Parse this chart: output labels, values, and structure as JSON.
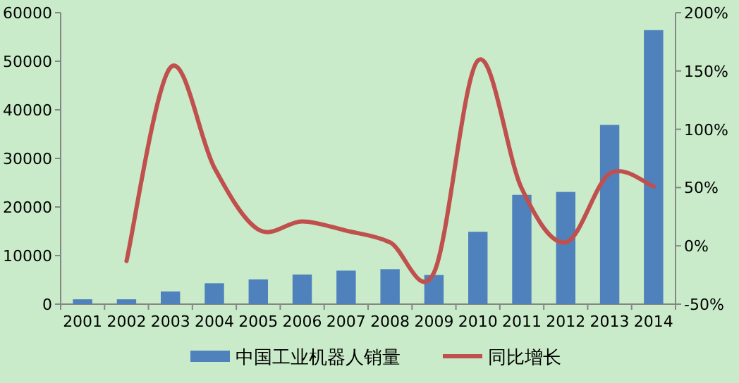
{
  "chart_data": {
    "type": "bar",
    "categories": [
      "2001",
      "2002",
      "2003",
      "2004",
      "2005",
      "2006",
      "2007",
      "2008",
      "2009",
      "2010",
      "2011",
      "2012",
      "2013",
      "2014"
    ],
    "series": [
      {
        "name": "中国工业机器人销量",
        "color": "#4f81bd",
        "values": [
          1000,
          1000,
          2600,
          4300,
          5100,
          6100,
          6900,
          7200,
          6000,
          14900,
          22500,
          23100,
          36900,
          56400
        ]
      },
      {
        "name": "同比增长",
        "type": "line",
        "axis": "y2",
        "color": "#c0504d",
        "values": [
          null,
          -13,
          153,
          67,
          14,
          21,
          13,
          3,
          -23,
          159,
          49,
          3,
          62,
          51
        ]
      }
    ],
    "ylim": [
      0,
      60000
    ],
    "yticks": [
      0,
      10000,
      20000,
      30000,
      40000,
      50000,
      60000
    ],
    "y2lim": [
      -50,
      200
    ],
    "y2ticks": [
      {
        "value": -50,
        "label": "-50%"
      },
      {
        "value": 0,
        "label": "0%"
      },
      {
        "value": 50,
        "label": "50%"
      },
      {
        "value": 100,
        "label": "100%"
      },
      {
        "value": 150,
        "label": "150%"
      },
      {
        "value": 200,
        "label": "200%"
      }
    ],
    "legend": "bottom",
    "grid": false
  }
}
